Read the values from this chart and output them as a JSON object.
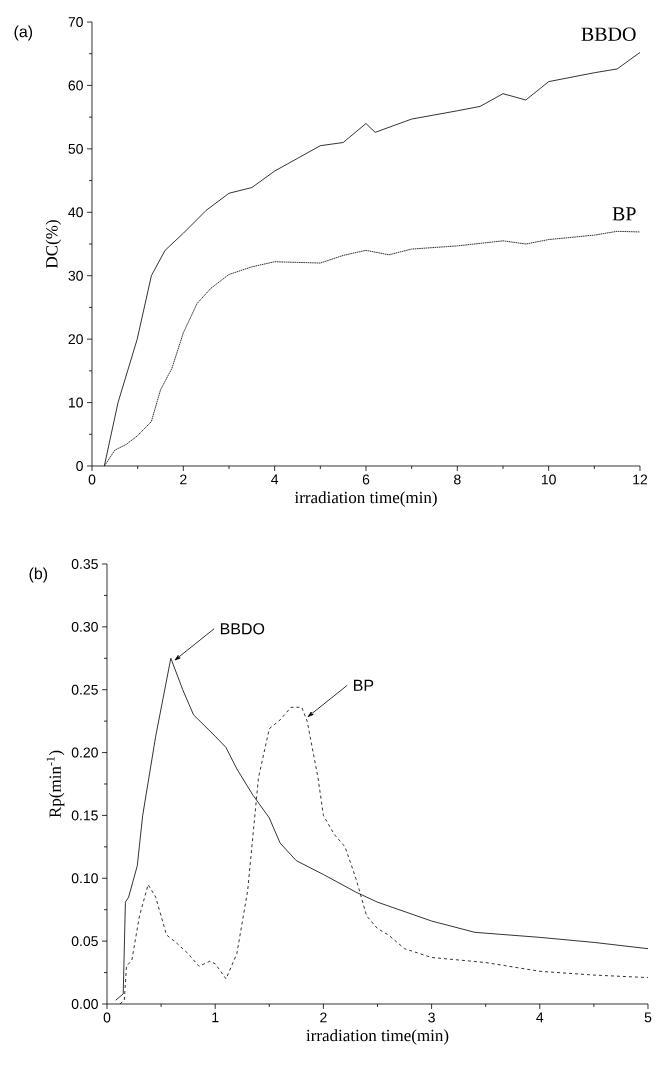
{
  "chart_data": [
    {
      "type": "line",
      "xlabel": "irradiation time(min)",
      "ylabel": "DC(%)",
      "annotations": [
        "(a)"
      ],
      "xlim": [
        0,
        12
      ],
      "ylim": [
        0,
        70
      ],
      "xticks": [
        0,
        2,
        4,
        6,
        8,
        10,
        12
      ],
      "yticks": [
        0,
        10,
        20,
        30,
        40,
        50,
        60,
        70
      ],
      "series": [
        {
          "name": "BBDO",
          "color": "#000000",
          "line_style": "solid",
          "x": [
            0.27,
            0.57,
            0.99,
            1.3,
            1.6,
            2,
            2.5,
            3,
            3.5,
            4,
            4.5,
            5,
            5.5,
            6,
            6.2,
            7,
            8,
            8.5,
            9,
            9.5,
            10,
            11,
            11.5,
            12
          ],
          "values": [
            0,
            10,
            20,
            30,
            34,
            36.7,
            40.3,
            43,
            43.9,
            46.5,
            48.5,
            50.5,
            51,
            54,
            52.6,
            54.7,
            56,
            56.7,
            58.7,
            57.7,
            60.6,
            62,
            62.6,
            65.2
          ]
        },
        {
          "name": "BP",
          "color": "#000000",
          "line_style": "dotted",
          "x": [
            0.27,
            0.5,
            0.75,
            1,
            1.3,
            1.5,
            1.75,
            2,
            2.3,
            2.6,
            3,
            3.5,
            4,
            5,
            5.5,
            6,
            6.5,
            7,
            8,
            9,
            9.5,
            10,
            11,
            11.5,
            12
          ],
          "values": [
            0,
            2.5,
            3.4,
            4.8,
            7,
            12,
            15.4,
            21,
            25.6,
            28,
            30.2,
            31.4,
            32.2,
            32,
            33.2,
            34,
            33.3,
            34.2,
            34.7,
            35.5,
            35,
            35.7,
            36.4,
            37,
            36.9
          ]
        }
      ]
    },
    {
      "type": "line",
      "xlabel": "irradiation time(min)",
      "ylabel": "Rp(min$^{-1}$)",
      "annotations": [
        "(b)",
        {
          "text": "BBDO",
          "x": 0.62,
          "y": 0.273
        },
        {
          "text": "BP",
          "x": 1.85,
          "y": 0.228
        }
      ],
      "xlim": [
        0,
        5
      ],
      "ylim": [
        0,
        0.35
      ],
      "xticks": [
        0,
        1,
        2,
        3,
        4,
        5
      ],
      "yticks": [
        {
          "value": 0,
          "label": "0.00"
        },
        {
          "value": 0.05,
          "label": "0.05"
        },
        {
          "value": 0.1,
          "label": "0.10"
        },
        {
          "value": 0.15,
          "label": "0.15"
        },
        {
          "value": 0.2,
          "label": "0.20"
        },
        {
          "value": 0.25,
          "label": "0.25"
        },
        {
          "value": 0.3,
          "label": "0.30"
        },
        {
          "value": 0.35,
          "label": "0.35"
        }
      ],
      "series": [
        {
          "color": "#000000",
          "line_style": "solid",
          "x": [
            0.08,
            0.15,
            0.17,
            0.2,
            0.28,
            0.33,
            0.45,
            0.59,
            0.7,
            0.8,
            1.0,
            1.1,
            1.2,
            1.35,
            1.5,
            1.6,
            1.75,
            2,
            2.3,
            2.5,
            3,
            3.4,
            4,
            4.5,
            5
          ],
          "values": [
            0.003,
            0.008,
            0.081,
            0.085,
            0.11,
            0.15,
            0.213,
            0.275,
            0.25,
            0.23,
            0.213,
            0.204,
            0.187,
            0.166,
            0.148,
            0.128,
            0.114,
            0.103,
            0.089,
            0.081,
            0.066,
            0.057,
            0.053,
            0.049,
            0.044
          ]
        },
        {
          "color": "#000000",
          "line_style": "dashed",
          "x": [
            0.12,
            0.16,
            0.18,
            0.23,
            0.3,
            0.38,
            0.45,
            0.55,
            0.65,
            0.75,
            0.85,
            0.95,
            1.0,
            1.1,
            1.2,
            1.3,
            1.4,
            1.5,
            1.6,
            1.7,
            1.8,
            1.85,
            1.95,
            2.0,
            2.1,
            2.2,
            2.3,
            2.4,
            2.5,
            2.6,
            2.75,
            3,
            3.5,
            4,
            4.5,
            5
          ],
          "values": [
            0.0,
            0.003,
            0.03,
            0.035,
            0.07,
            0.095,
            0.085,
            0.055,
            0.048,
            0.04,
            0.03,
            0.034,
            0.032,
            0.02,
            0.04,
            0.09,
            0.18,
            0.219,
            0.226,
            0.236,
            0.236,
            0.225,
            0.18,
            0.15,
            0.135,
            0.125,
            0.1,
            0.07,
            0.06,
            0.055,
            0.044,
            0.037,
            0.033,
            0.026,
            0.023,
            0.021
          ]
        }
      ]
    }
  ]
}
